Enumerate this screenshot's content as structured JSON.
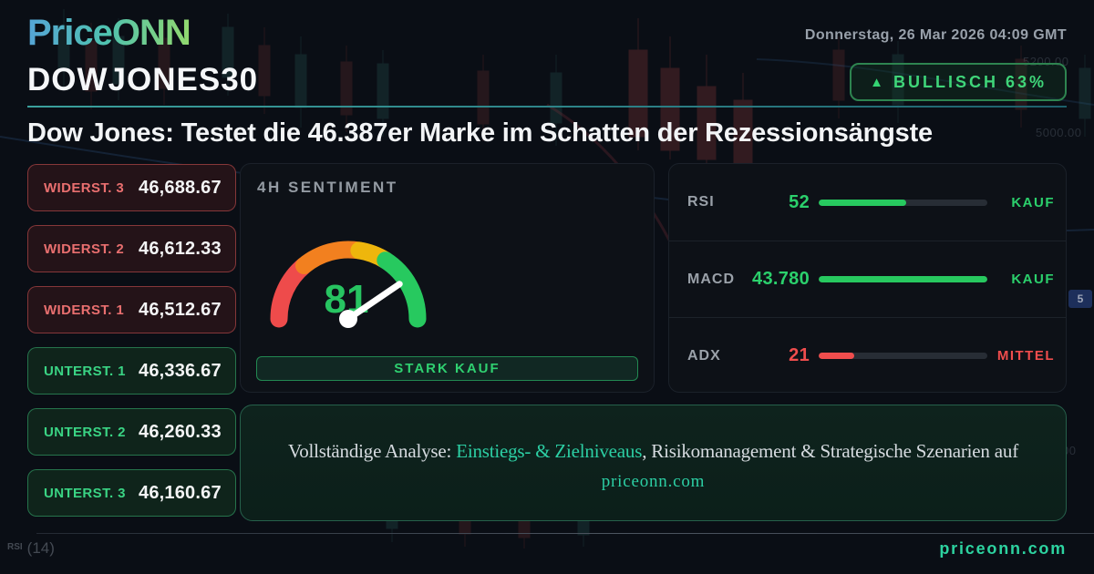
{
  "header": {
    "logo": "PriceONN",
    "datetime": "Donnerstag, 26 Mar 2026 04:09 GMT",
    "symbol": "DOWJONES30",
    "badge": {
      "icon": "▲",
      "label": "BULLISCH 63%"
    }
  },
  "headline": "Dow Jones: Testet die 46.387er Marke im Schatten der Rezessionsängste",
  "levels": {
    "resistances": [
      {
        "label": "WIDERST. 3",
        "value": "46,688.67"
      },
      {
        "label": "WIDERST. 2",
        "value": "46,612.33"
      },
      {
        "label": "WIDERST. 1",
        "value": "46,512.67"
      }
    ],
    "supports": [
      {
        "label": "UNTERST. 1",
        "value": "46,336.67"
      },
      {
        "label": "UNTERST. 2",
        "value": "46,260.33"
      },
      {
        "label": "UNTERST. 3",
        "value": "46,160.67"
      }
    ]
  },
  "sentiment": {
    "title": "4H SENTIMENT",
    "score": 81,
    "verdict": "STARK KAUF"
  },
  "indicators": [
    {
      "name": "RSI",
      "value": "52",
      "percent": 52,
      "status": "KAUF",
      "color": "#27c95f"
    },
    {
      "name": "MACD",
      "value": "43.780",
      "percent": 100,
      "status": "KAUF",
      "color": "#27c95f"
    },
    {
      "name": "ADX",
      "value": "21",
      "percent": 21,
      "status": "MITTEL",
      "color": "#ef4d4d"
    }
  ],
  "cta": {
    "prefix": "Vollständige Analyse: ",
    "highlight": "Einstiegs- & Zielniveaus",
    "suffix": ", Risikomanagement & Strategische Szenarien auf",
    "site": "priceonn.com"
  },
  "footer": {
    "indicator": "RSI",
    "period": "(14)",
    "site": "priceonn.com"
  },
  "background": {
    "axis_labels": [
      "5200.00",
      "5000.00",
      "4200.00"
    ],
    "price_chip": "5"
  },
  "colors": {
    "accent_green": "#27c95f",
    "accent_red": "#ef4d4d",
    "accent_teal": "#2dd3a0",
    "gauge_red": "#ee4b4b",
    "gauge_orange": "#f2801f",
    "gauge_yellow": "#eeb60c",
    "gauge_green": "#27c95f"
  }
}
